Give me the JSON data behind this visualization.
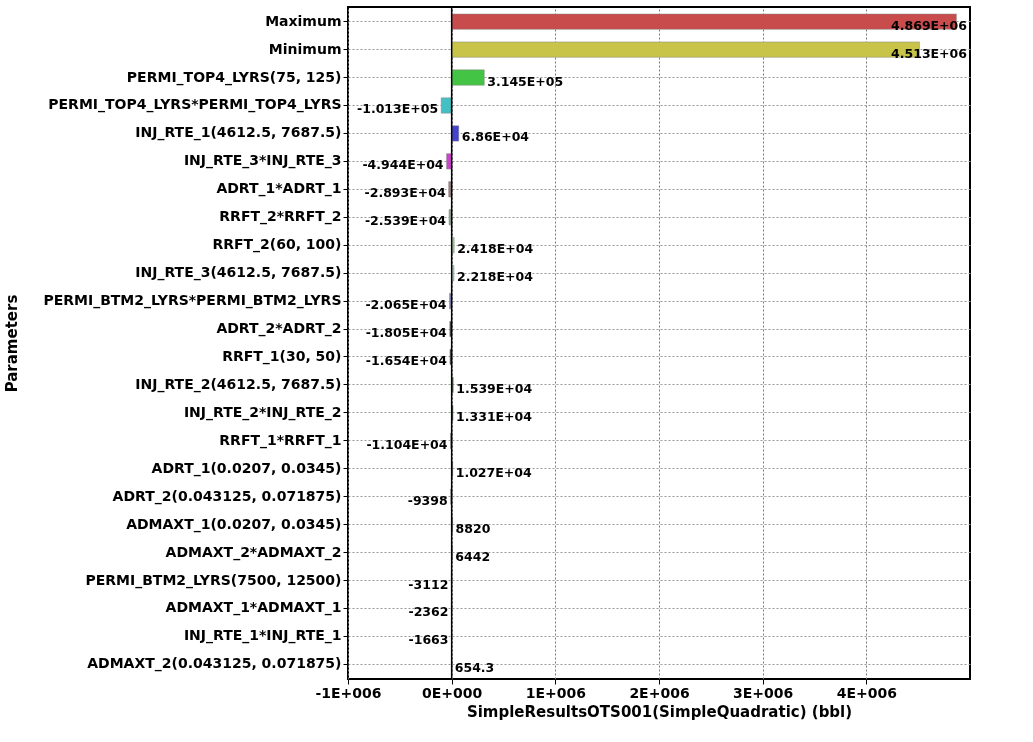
{
  "chart_data": {
    "type": "bar",
    "orientation": "horizontal",
    "xlabel": "SimpleResultsOTS001(SimpleQuadratic) (bbl)",
    "ylabel": "Parameters",
    "categories": [
      "Maximum",
      "Minimum",
      "PERMI_TOP4_LYRS(75, 125)",
      "PERMI_TOP4_LYRS*PERMI_TOP4_LYRS",
      "INJ_RTE_1(4612.5, 7687.5)",
      "INJ_RTE_3*INJ_RTE_3",
      "ADRT_1*ADRT_1",
      "RRFT_2*RRFT_2",
      "RRFT_2(60, 100)",
      "INJ_RTE_3(4612.5, 7687.5)",
      "PERMI_BTM2_LYRS*PERMI_BTM2_LYRS",
      "ADRT_2*ADRT_2",
      "RRFT_1(30, 50)",
      "INJ_RTE_2(4612.5, 7687.5)",
      "INJ_RTE_2*INJ_RTE_2",
      "RRFT_1*RRFT_1",
      "ADRT_1(0.0207, 0.0345)",
      "ADRT_2(0.043125, 0.071875)",
      "ADMAXT_1(0.0207, 0.0345)",
      "ADMAXT_2*ADMAXT_2",
      "PERMI_BTM2_LYRS(7500, 12500)",
      "ADMAXT_1*ADMAXT_1",
      "INJ_RTE_1*INJ_RTE_1",
      "ADMAXT_2(0.043125, 0.071875)"
    ],
    "values": [
      4869000,
      4513000,
      314500,
      -101300,
      68600,
      -49440,
      -28930,
      -25390,
      24180,
      22180,
      -20650,
      -18050,
      -16540,
      15390,
      13310,
      -11040,
      10270,
      -9398,
      8820,
      6442,
      -3112,
      -2362,
      -1663,
      654.3
    ],
    "value_labels": [
      "4.869E+06",
      "4.513E+06",
      "3.145E+05",
      "-1.013E+05",
      "6.86E+04",
      "-4.944E+04",
      "-2.893E+04",
      "-2.539E+04",
      "2.418E+04",
      "2.218E+04",
      "-2.065E+04",
      "-1.805E+04",
      "-1.654E+04",
      "1.539E+04",
      "1.331E+04",
      "-1.104E+04",
      "1.027E+04",
      "-9398",
      "8820",
      "6442",
      "-3112",
      "-2362",
      "-1663",
      "654.3"
    ],
    "colors": [
      "#c84c4c",
      "#c8c44a",
      "#44c444",
      "#44c0c4",
      "#4444cc",
      "#cc44cc",
      "#a08080",
      "#90a890",
      "#a0c8a0",
      "#a8c8c0",
      "#8080b0",
      "#404040",
      "#404040",
      "#406040",
      "#304830",
      "#606060",
      "#505050",
      "#404040",
      "#505050",
      "#404040",
      "#404040",
      "#404040",
      "#404040",
      "#404040"
    ],
    "xlim": [
      -1000000,
      5000000
    ],
    "xticks": [
      {
        "value": -1000000,
        "label": "-1E+006"
      },
      {
        "value": 0,
        "label": "0E+000"
      },
      {
        "value": 1000000,
        "label": "1E+006"
      },
      {
        "value": 2000000,
        "label": "2E+006"
      },
      {
        "value": 3000000,
        "label": "3E+006"
      },
      {
        "value": 4000000,
        "label": "4E+006"
      }
    ],
    "grid": true
  }
}
